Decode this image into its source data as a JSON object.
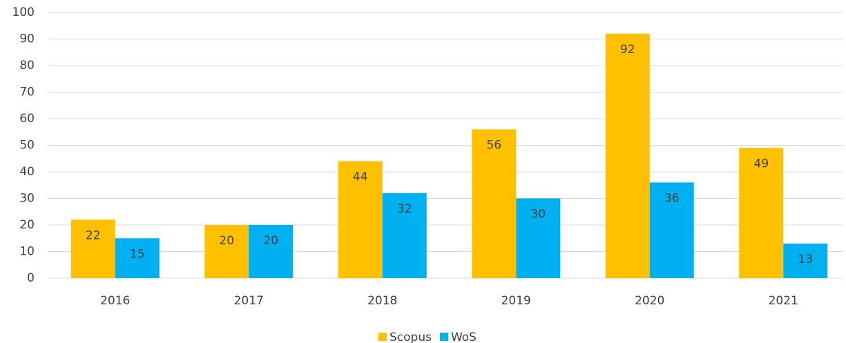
{
  "chart_data": {
    "type": "bar",
    "categories": [
      "2016",
      "2017",
      "2018",
      "2019",
      "2020",
      "2021"
    ],
    "series": [
      {
        "name": "Scopus",
        "color": "#FFC000",
        "values": [
          22,
          20,
          44,
          56,
          92,
          49
        ]
      },
      {
        "name": "WoS",
        "color": "#00B0F0",
        "values": [
          15,
          20,
          32,
          30,
          36,
          13
        ]
      }
    ],
    "ylim": [
      0,
      100
    ],
    "yticks": [
      0,
      10,
      20,
      30,
      40,
      50,
      60,
      70,
      80,
      90,
      100
    ],
    "grid": true,
    "legend": "bottom"
  }
}
